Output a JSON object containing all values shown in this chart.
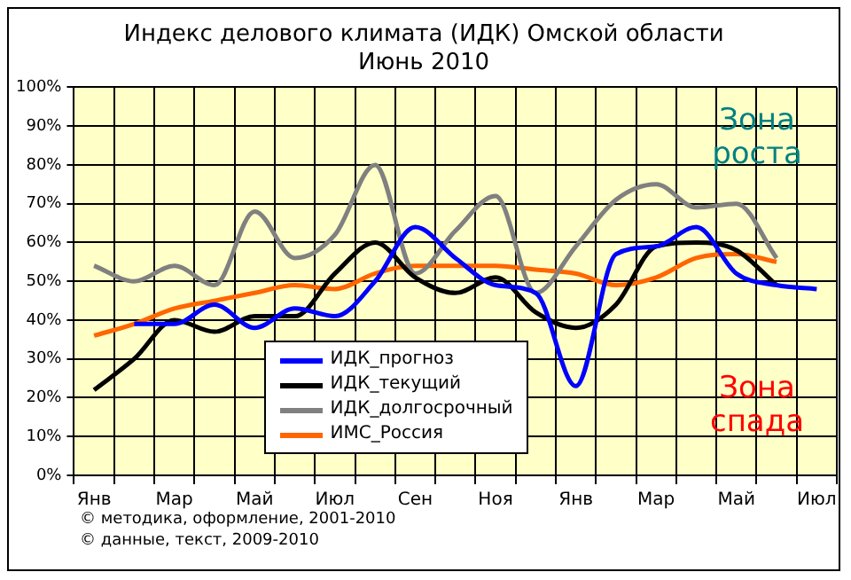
{
  "chart_data": {
    "type": "line",
    "title": [
      "Индекс делового климата (ИДК) Омской области",
      "Июнь 2010"
    ],
    "categories": [
      "Янв",
      null,
      "Мар",
      null,
      "Май",
      null,
      "Июл",
      null,
      "Сен",
      null,
      "Ноя",
      null,
      "Янв",
      null,
      "Мар",
      null,
      "Май",
      null,
      "Июл"
    ],
    "series": [
      {
        "name": "ИДК_прогноз",
        "color": "#0000ff",
        "values": [
          null,
          39,
          39,
          44,
          38,
          43,
          41,
          50,
          64,
          56,
          49,
          47,
          23,
          57,
          59,
          64,
          52,
          49,
          48
        ]
      },
      {
        "name": "ИДК_текущий",
        "color": "#000000",
        "values": [
          22,
          30,
          40,
          37,
          41,
          41,
          52,
          60,
          51,
          47,
          51,
          42,
          38,
          44,
          59,
          60,
          58,
          49,
          null
        ]
      },
      {
        "name": "ИДК_долгосрочный",
        "color": "#808080",
        "values": [
          54,
          50,
          54,
          49,
          68,
          56,
          62,
          80,
          52,
          63,
          72,
          47,
          59,
          71,
          75,
          69,
          70,
          56,
          null
        ]
      },
      {
        "name": "ИМС_Россия",
        "color": "#ff6600",
        "values": [
          36,
          39,
          43,
          45,
          47,
          49,
          48,
          52,
          54,
          54,
          54,
          53,
          52,
          49,
          51,
          56,
          57,
          55,
          null
        ]
      }
    ],
    "ylim": [
      0,
      100
    ],
    "yticks": [
      {
        "value": 0,
        "label": "0%"
      },
      {
        "value": 10,
        "label": "10%"
      },
      {
        "value": 20,
        "label": "20%"
      },
      {
        "value": 30,
        "label": "30%"
      },
      {
        "value": 40,
        "label": "40%"
      },
      {
        "value": 50,
        "label": "50%"
      },
      {
        "value": 60,
        "label": "60%"
      },
      {
        "value": 70,
        "label": "70%"
      },
      {
        "value": 80,
        "label": "80%"
      },
      {
        "value": 90,
        "label": "90%"
      },
      {
        "value": 100,
        "label": "100%"
      }
    ],
    "grid": true,
    "legend": "bottom",
    "marker": "none",
    "line_style": "solid",
    "annotations": [
      "Зона роста",
      "Зона спада",
      "© методика, оформление, 2001-2010",
      "© данные, текст, 2009-2010"
    ]
  }
}
